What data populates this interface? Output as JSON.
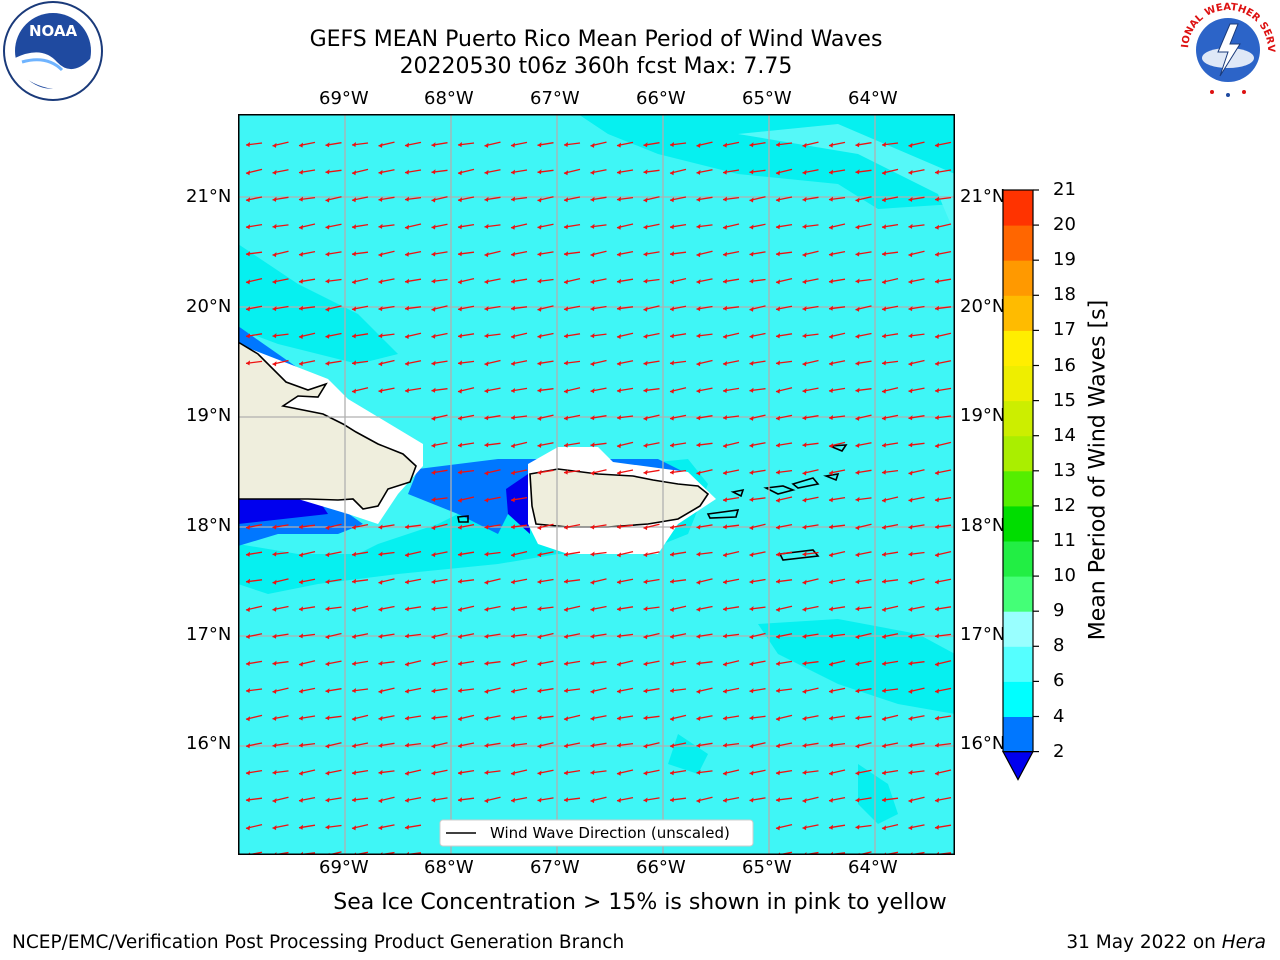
{
  "title_line1": "GEFS MEAN Puerto Rico Mean Period of Wind Waves",
  "title_line2": "20220530 t06z 360h fcst   Max: 7.75",
  "subtitle": "Sea Ice Concentration > 15% is shown in pink to yellow",
  "footer_left": "NCEP/EMC/Verification Post Processing Product Generation Branch",
  "footer_date": "31 May 2022 on ",
  "footer_machine": "Hera",
  "logo_left": "NOAA",
  "logo_right": "NATIONAL WEATHER SERVICE",
  "legend_label": "Wind Wave Direction (unscaled)",
  "lon_labels": [
    "69°W",
    "68°W",
    "67°W",
    "66°W",
    "65°W",
    "64°W"
  ],
  "lat_labels": [
    "21°N",
    "20°N",
    "19°N",
    "18°N",
    "17°N",
    "16°N"
  ],
  "colorbar": {
    "label": "Mean Period of Wind Waves [s]",
    "ticks": [
      "2",
      "4",
      "6",
      "8",
      "9",
      "10",
      "11",
      "12",
      "13",
      "14",
      "15",
      "16",
      "17",
      "18",
      "19",
      "20",
      "21"
    ],
    "colors": [
      "#0077ff",
      "#00ffff",
      "#55ffff",
      "#99ffff",
      "#44ff77",
      "#22ee44",
      "#00dd00",
      "#55ee00",
      "#aaee00",
      "#ccee00",
      "#eeee00",
      "#ffee00",
      "#ffbb00",
      "#ff9900",
      "#ff6600",
      "#ff3300",
      "#ff0000"
    ],
    "under_color": "#0000ee"
  },
  "map": {
    "ocean_color": "#3ff6f6",
    "land_color": "#efeedd",
    "arrow_color": "#ee1111",
    "lon_range": [
      -70.0,
      -63.25
    ],
    "lat_range": [
      15.0,
      21.75
    ],
    "max_period": 7.75
  }
}
